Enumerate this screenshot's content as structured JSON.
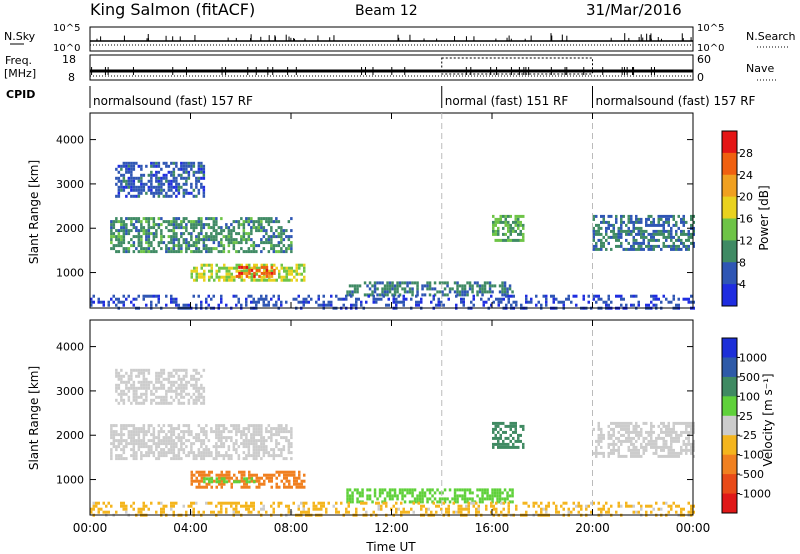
{
  "header": {
    "title": "King Salmon (fitACF)",
    "beam": "Beam 12",
    "date": "31/Mar/2016"
  },
  "status_panels": {
    "nsky_label": "N.Sky",
    "nsearch_label": "N.Search",
    "freq_label_1": "Freq.",
    "freq_label_2": "[MHz]",
    "nave_label": "Nave",
    "cpid_label": "CPID",
    "nsky_ticks": [
      "10^5",
      "10^0"
    ],
    "nsearch_ticks": [
      "10^5",
      "10^0"
    ],
    "freq_ticks": [
      18,
      8
    ],
    "nave_ticks": [
      60,
      0
    ],
    "cpid_segments": [
      {
        "label": "normalsound (fast) 157 RF",
        "start_hour": 0,
        "end_hour": 14
      },
      {
        "label": "normal (fast) 151 RF",
        "start_hour": 14,
        "end_hour": 20
      },
      {
        "label": "normalsound (fast) 157 RF",
        "start_hour": 20,
        "end_hour": 24
      }
    ]
  },
  "chart_data": [
    {
      "type": "heatmap",
      "name": "power",
      "ylabel": "Slant Range [km]",
      "xlabel": "",
      "xlim": [
        0,
        24
      ],
      "ylim": [
        200,
        4600
      ],
      "yticks": [
        1000,
        2000,
        3000,
        4000
      ],
      "colorbar": {
        "label": "Power [dB]",
        "ticks": [
          "4",
          "8",
          "12",
          "16",
          "20",
          "24",
          "28"
        ],
        "colors": [
          "#1f2de0",
          "#2f56b4",
          "#3f8a64",
          "#6ec447",
          "#e9d21f",
          "#f0a020",
          "#f06010",
          "#e41616"
        ]
      },
      "regions": [
        {
          "x": [
            0.8,
            8.0
          ],
          "y": [
            1500,
            2250
          ],
          "value": 10
        },
        {
          "x": [
            1.0,
            4.5
          ],
          "y": [
            2700,
            3500
          ],
          "value": 6
        },
        {
          "x": [
            4.0,
            8.5
          ],
          "y": [
            800,
            1200
          ],
          "value": 16
        },
        {
          "x": [
            5.8,
            7.3
          ],
          "y": [
            900,
            1150
          ],
          "value": 26
        },
        {
          "x": [
            10.2,
            16.8
          ],
          "y": [
            520,
            800
          ],
          "value": 9
        },
        {
          "x": [
            16.0,
            17.2
          ],
          "y": [
            1750,
            2300
          ],
          "value": 12
        },
        {
          "x": [
            20.0,
            24.0
          ],
          "y": [
            1500,
            2300
          ],
          "value": 8
        },
        {
          "x": [
            0.0,
            24.0
          ],
          "y": [
            200,
            500
          ],
          "value": 5
        }
      ]
    },
    {
      "type": "heatmap",
      "name": "velocity",
      "ylabel": "Slant Range [km]",
      "xlabel": "Time UT",
      "xlim": [
        0,
        24
      ],
      "ylim": [
        200,
        4600
      ],
      "xticks": [
        "00:00",
        "04:00",
        "08:00",
        "12:00",
        "16:00",
        "20:00",
        "00:00"
      ],
      "yticks": [
        1000,
        2000,
        3000,
        4000
      ],
      "colorbar": {
        "label": "Velocity [m s⁻¹]",
        "ticks": [
          "1000",
          "500",
          "100",
          "25",
          "-25",
          "-100",
          "-500",
          "-1000"
        ],
        "colors": [
          "#1c2fd8",
          "#2e5aa8",
          "#3f8a62",
          "#5fd13a",
          "#cccccc",
          "#f4b51e",
          "#f08020",
          "#e84a18",
          "#e01818"
        ]
      },
      "regions": [
        {
          "x": [
            0.8,
            8.0
          ],
          "y": [
            1500,
            2250
          ],
          "value": 0
        },
        {
          "x": [
            1.0,
            4.5
          ],
          "y": [
            2700,
            3500
          ],
          "value": 0
        },
        {
          "x": [
            4.0,
            8.5
          ],
          "y": [
            800,
            1200
          ],
          "value": -150
        },
        {
          "x": [
            4.5,
            6.5
          ],
          "y": [
            950,
            1050
          ],
          "value": 60
        },
        {
          "x": [
            10.2,
            16.8
          ],
          "y": [
            520,
            800
          ],
          "value": 60
        },
        {
          "x": [
            16.0,
            17.2
          ],
          "y": [
            1750,
            2300
          ],
          "value": 200
        },
        {
          "x": [
            20.0,
            24.0
          ],
          "y": [
            1500,
            2300
          ],
          "value": 0
        },
        {
          "x": [
            0.0,
            24.0
          ],
          "y": [
            200,
            500
          ],
          "value": -40
        }
      ]
    }
  ]
}
